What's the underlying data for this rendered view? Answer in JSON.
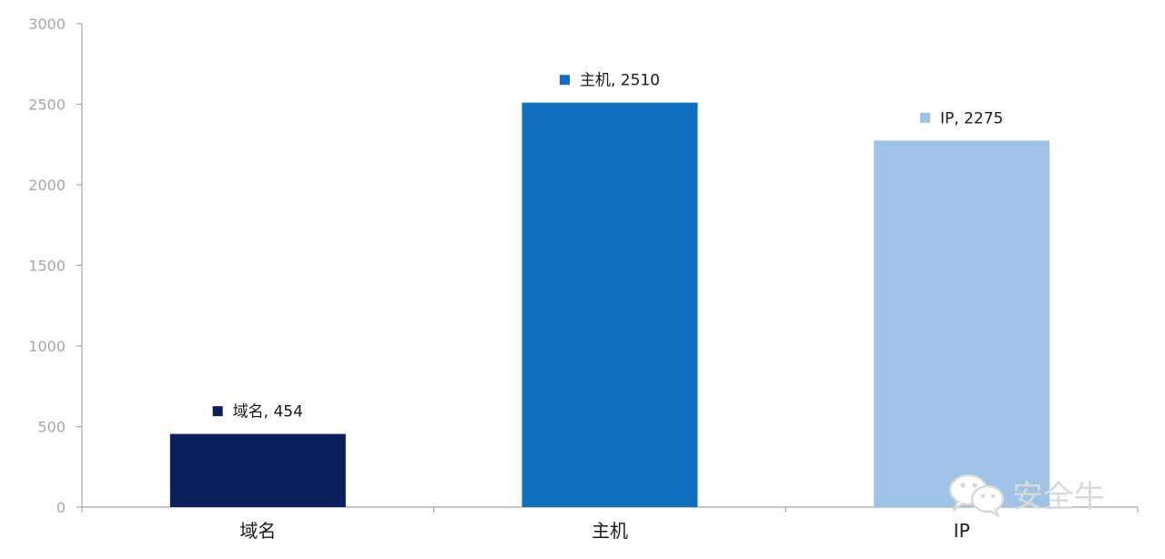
{
  "chart_data": {
    "type": "bar",
    "categories": [
      "域名",
      "主机",
      "IP"
    ],
    "values": [
      454,
      2510,
      2275
    ],
    "colors": [
      "#0b1f5c",
      "#0f70c0",
      "#9fc3e6"
    ],
    "data_labels": [
      "域名, 454",
      "主机, 2510",
      "IP, 2275"
    ],
    "ylim": [
      0,
      3000
    ],
    "yticks": [
      0,
      500,
      1000,
      1500,
      2000,
      2500,
      3000
    ],
    "grid": false,
    "title": "",
    "xlabel": "",
    "ylabel": ""
  },
  "watermark": {
    "text": "安全牛",
    "icon": "wechat-icon"
  }
}
